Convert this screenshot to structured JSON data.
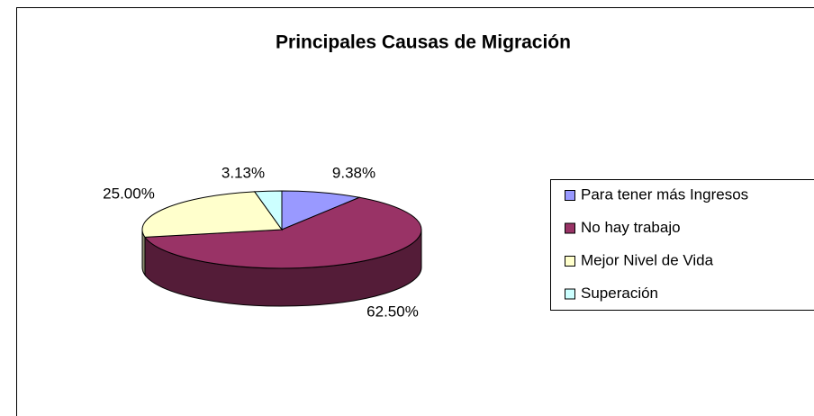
{
  "chart_data": {
    "type": "pie3d",
    "title": "Principales Causas de Migración",
    "categories": [
      "Para tener más Ingresos",
      "No hay trabajo",
      "Mejor Nivel de Vida",
      "Superación"
    ],
    "values": [
      9.38,
      62.5,
      25,
      3.13
    ],
    "value_labels": [
      "9.38%",
      "62.50%",
      "25.00%",
      "3.13%"
    ],
    "colors": [
      "#9999ff",
      "#993366",
      "#ffffcc",
      "#ccffff"
    ],
    "legend": "right"
  }
}
